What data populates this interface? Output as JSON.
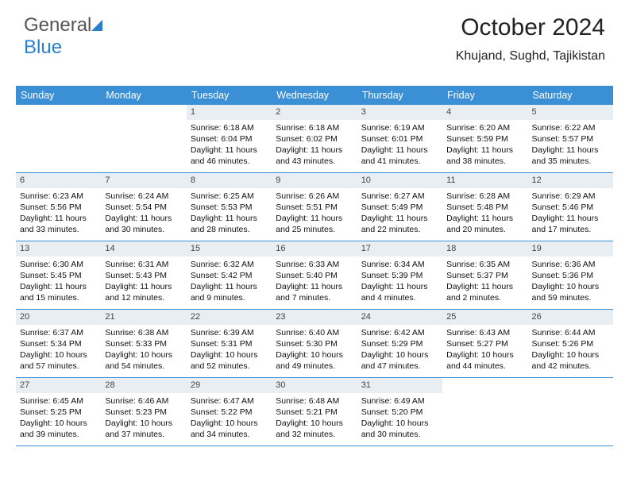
{
  "logo": {
    "text1": "General",
    "text2": "Blue"
  },
  "header": {
    "month": "October 2024",
    "location": "Khujand, Sughd, Tajikistan"
  },
  "style": {
    "header_bg": "#3b8fd4",
    "header_text": "#ffffff",
    "daynum_bg": "#e9eef2",
    "border_color": "#3b8fd4",
    "body_fontsize": 10.5,
    "dow_fontsize": 12.5,
    "month_fontsize": 30,
    "location_fontsize": 16
  },
  "days_of_week": [
    "Sunday",
    "Monday",
    "Tuesday",
    "Wednesday",
    "Thursday",
    "Friday",
    "Saturday"
  ],
  "weeks": [
    [
      null,
      null,
      {
        "n": "1",
        "sr": "6:18 AM",
        "ss": "6:04 PM",
        "dl": "11 hours and 46 minutes."
      },
      {
        "n": "2",
        "sr": "6:18 AM",
        "ss": "6:02 PM",
        "dl": "11 hours and 43 minutes."
      },
      {
        "n": "3",
        "sr": "6:19 AM",
        "ss": "6:01 PM",
        "dl": "11 hours and 41 minutes."
      },
      {
        "n": "4",
        "sr": "6:20 AM",
        "ss": "5:59 PM",
        "dl": "11 hours and 38 minutes."
      },
      {
        "n": "5",
        "sr": "6:22 AM",
        "ss": "5:57 PM",
        "dl": "11 hours and 35 minutes."
      }
    ],
    [
      {
        "n": "6",
        "sr": "6:23 AM",
        "ss": "5:56 PM",
        "dl": "11 hours and 33 minutes."
      },
      {
        "n": "7",
        "sr": "6:24 AM",
        "ss": "5:54 PM",
        "dl": "11 hours and 30 minutes."
      },
      {
        "n": "8",
        "sr": "6:25 AM",
        "ss": "5:53 PM",
        "dl": "11 hours and 28 minutes."
      },
      {
        "n": "9",
        "sr": "6:26 AM",
        "ss": "5:51 PM",
        "dl": "11 hours and 25 minutes."
      },
      {
        "n": "10",
        "sr": "6:27 AM",
        "ss": "5:49 PM",
        "dl": "11 hours and 22 minutes."
      },
      {
        "n": "11",
        "sr": "6:28 AM",
        "ss": "5:48 PM",
        "dl": "11 hours and 20 minutes."
      },
      {
        "n": "12",
        "sr": "6:29 AM",
        "ss": "5:46 PM",
        "dl": "11 hours and 17 minutes."
      }
    ],
    [
      {
        "n": "13",
        "sr": "6:30 AM",
        "ss": "5:45 PM",
        "dl": "11 hours and 15 minutes."
      },
      {
        "n": "14",
        "sr": "6:31 AM",
        "ss": "5:43 PM",
        "dl": "11 hours and 12 minutes."
      },
      {
        "n": "15",
        "sr": "6:32 AM",
        "ss": "5:42 PM",
        "dl": "11 hours and 9 minutes."
      },
      {
        "n": "16",
        "sr": "6:33 AM",
        "ss": "5:40 PM",
        "dl": "11 hours and 7 minutes."
      },
      {
        "n": "17",
        "sr": "6:34 AM",
        "ss": "5:39 PM",
        "dl": "11 hours and 4 minutes."
      },
      {
        "n": "18",
        "sr": "6:35 AM",
        "ss": "5:37 PM",
        "dl": "11 hours and 2 minutes."
      },
      {
        "n": "19",
        "sr": "6:36 AM",
        "ss": "5:36 PM",
        "dl": "10 hours and 59 minutes."
      }
    ],
    [
      {
        "n": "20",
        "sr": "6:37 AM",
        "ss": "5:34 PM",
        "dl": "10 hours and 57 minutes."
      },
      {
        "n": "21",
        "sr": "6:38 AM",
        "ss": "5:33 PM",
        "dl": "10 hours and 54 minutes."
      },
      {
        "n": "22",
        "sr": "6:39 AM",
        "ss": "5:31 PM",
        "dl": "10 hours and 52 minutes."
      },
      {
        "n": "23",
        "sr": "6:40 AM",
        "ss": "5:30 PM",
        "dl": "10 hours and 49 minutes."
      },
      {
        "n": "24",
        "sr": "6:42 AM",
        "ss": "5:29 PM",
        "dl": "10 hours and 47 minutes."
      },
      {
        "n": "25",
        "sr": "6:43 AM",
        "ss": "5:27 PM",
        "dl": "10 hours and 44 minutes."
      },
      {
        "n": "26",
        "sr": "6:44 AM",
        "ss": "5:26 PM",
        "dl": "10 hours and 42 minutes."
      }
    ],
    [
      {
        "n": "27",
        "sr": "6:45 AM",
        "ss": "5:25 PM",
        "dl": "10 hours and 39 minutes."
      },
      {
        "n": "28",
        "sr": "6:46 AM",
        "ss": "5:23 PM",
        "dl": "10 hours and 37 minutes."
      },
      {
        "n": "29",
        "sr": "6:47 AM",
        "ss": "5:22 PM",
        "dl": "10 hours and 34 minutes."
      },
      {
        "n": "30",
        "sr": "6:48 AM",
        "ss": "5:21 PM",
        "dl": "10 hours and 32 minutes."
      },
      {
        "n": "31",
        "sr": "6:49 AM",
        "ss": "5:20 PM",
        "dl": "10 hours and 30 minutes."
      },
      null,
      null
    ]
  ],
  "labels": {
    "sunrise": "Sunrise:",
    "sunset": "Sunset:",
    "daylight": "Daylight:"
  }
}
